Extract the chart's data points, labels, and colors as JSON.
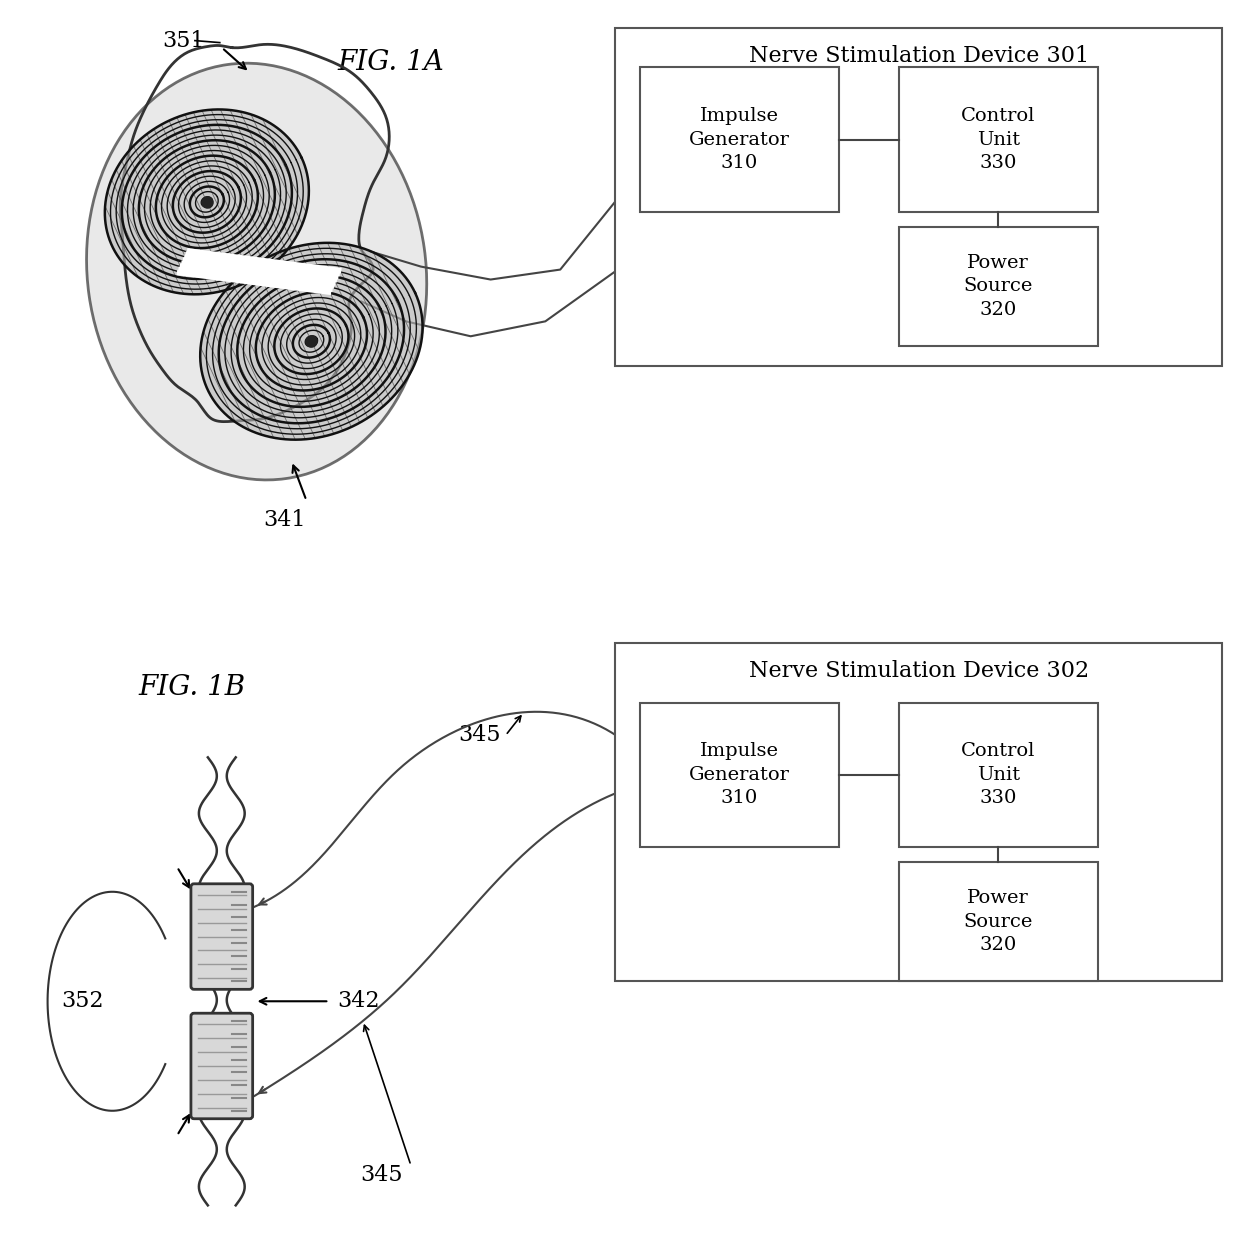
{
  "bg_color": "#ffffff",
  "fig_width": 12.4,
  "fig_height": 12.36,
  "fig1a_label": "FIG. 1A",
  "fig1b_label": "FIG. 1B",
  "device301_title": "Nerve Stimulation Device 301",
  "device302_title": "Nerve Stimulation Device 302",
  "impulse_gen_label": "Impulse\nGenerator\n310",
  "control_unit_label": "Control\nUnit\n330",
  "power_source_label": "Power\nSource\n320",
  "label_351": "351",
  "label_341": "341",
  "label_345": "345",
  "label_342": "342",
  "label_352": "352",
  "line_color": "#444444",
  "box_edge_color": "#555555",
  "text_color": "#000000"
}
